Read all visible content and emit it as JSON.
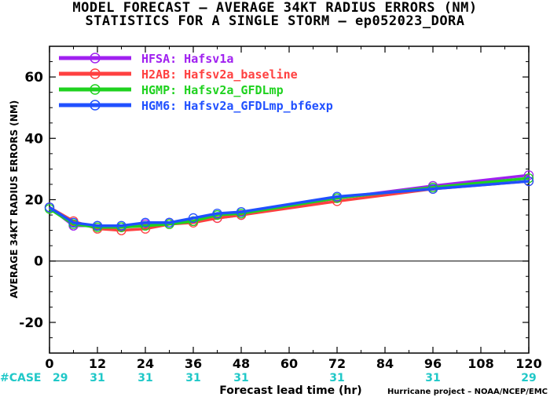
{
  "title_line1": "MODEL FORECAST – AVERAGE 34KT RADIUS ERRORS (NM)",
  "title_line2": "STATISTICS FOR A SINGLE STORM – ep052023_DORA",
  "credit": "Hurricane project – NOAA/NCEP/EMC",
  "colors": {
    "HFSA": "#a020f0",
    "H2AB": "#ff4040",
    "HGMP": "#1fd21f",
    "HGM6": "#2050ff",
    "case_text": "#20c8c8"
  },
  "chart_data": {
    "type": "line",
    "xlabel": "Forecast lead time (hr)",
    "ylabel": "AVERAGE 34KT RADIUS ERRORS (NM)",
    "xlim": [
      0,
      120
    ],
    "ylim": [
      -30,
      70
    ],
    "x_ticks": [
      0,
      12,
      24,
      36,
      48,
      60,
      72,
      84,
      96,
      108,
      120
    ],
    "y_ticks": [
      -20,
      0,
      20,
      40,
      60
    ],
    "x": [
      0,
      6,
      12,
      18,
      24,
      30,
      36,
      42,
      48,
      72,
      96,
      120
    ],
    "series": [
      {
        "name": "HFSA: Hafsv1a",
        "color_key": "HFSA",
        "values": [
          17.5,
          11.5,
          11.5,
          11.0,
          12.0,
          12.5,
          13.0,
          14.0,
          15.0,
          20.5,
          24.5,
          28.0
        ]
      },
      {
        "name": "H2AB: Hafsv2a_baseline",
        "color_key": "H2AB",
        "values": [
          17.5,
          13.0,
          10.5,
          10.0,
          10.5,
          12.0,
          12.5,
          14.0,
          15.0,
          19.5,
          23.5,
          26.0
        ]
      },
      {
        "name": "HGMP: Hafsv2a_GFDLmp",
        "color_key": "HGMP",
        "values": [
          17.0,
          12.0,
          11.0,
          11.0,
          11.5,
          12.0,
          13.0,
          15.0,
          15.5,
          20.5,
          24.0,
          27.0
        ]
      },
      {
        "name": "HGM6: Hafsv2a_GFDLmp_bf6exp",
        "color_key": "HGM6",
        "values": [
          17.5,
          12.5,
          11.5,
          11.5,
          12.5,
          12.5,
          14.0,
          15.5,
          16.0,
          21.0,
          23.5,
          26.0
        ]
      }
    ],
    "case_label": "#CASE",
    "case_x": [
      0,
      12,
      24,
      36,
      48,
      72,
      96,
      120
    ],
    "case_counts": [
      "29",
      "31",
      "31",
      "31",
      "31",
      "31",
      "31",
      "29"
    ],
    "zero_line": true,
    "grid": false,
    "legend_position": "top-left"
  }
}
